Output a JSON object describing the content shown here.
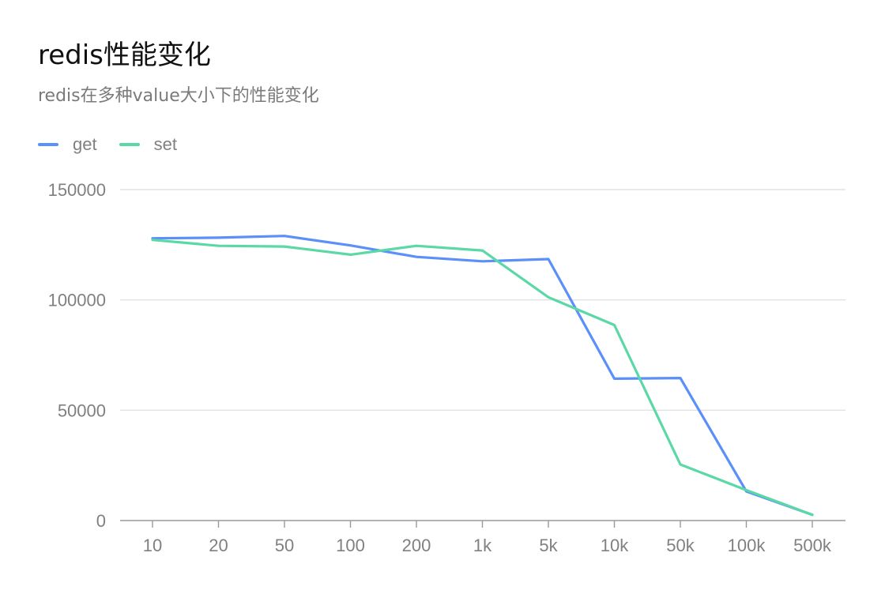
{
  "chart_data": {
    "type": "line",
    "title": "redis性能变化",
    "subtitle": "redis在多种value大小下的性能变化",
    "categories": [
      "10",
      "20",
      "50",
      "100",
      "200",
      "1k",
      "5k",
      "10k",
      "50k",
      "100k",
      "500k"
    ],
    "series": [
      {
        "name": "get",
        "color": "#5b8ff9",
        "values": [
          127900,
          128200,
          129000,
          124700,
          119500,
          117500,
          118500,
          64300,
          64600,
          13200,
          2600
        ]
      },
      {
        "name": "set",
        "color": "#5ad8a6",
        "values": [
          127200,
          124500,
          124200,
          120500,
          124500,
          122400,
          101200,
          88600,
          25400,
          13800,
          2600
        ]
      }
    ],
    "y_ticks": [
      "0",
      "50000",
      "100000",
      "150000"
    ],
    "ylim": [
      0,
      150000
    ],
    "xlabel": "",
    "ylabel": "",
    "grid": true,
    "legend_position": "top-left"
  }
}
